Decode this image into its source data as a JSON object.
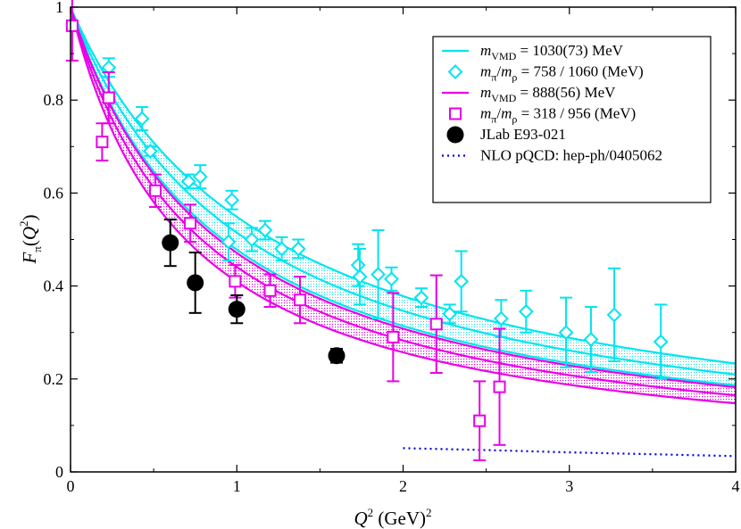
{
  "chart_data": {
    "type": "scatter",
    "title": "",
    "xlabel_parts": {
      "var": "Q",
      "sup": "2",
      "unit": "(GeV)",
      "unit_sup": "2"
    },
    "ylabel_parts": {
      "var": "F",
      "sub": "π",
      "arg_open": "(",
      "arg_var": "Q",
      "arg_sup": "2",
      "arg_close": ")"
    },
    "xlim": [
      0,
      4
    ],
    "ylim": [
      0,
      1
    ],
    "xticks": [
      "0",
      "1",
      "2",
      "3",
      "4"
    ],
    "yticks": [
      "0",
      "0.2",
      "0.4",
      "0.6",
      "0.8",
      "1"
    ],
    "legend_position": "top-right",
    "colors": {
      "cyan": "#00e5ee",
      "magenta": "#e800e8",
      "black": "#000000",
      "blue": "#0000dd"
    },
    "legend": [
      {
        "label_var": "m",
        "label_sub": "VMD",
        "label_rest": " = 1030(73) MeV",
        "kind": "line",
        "color": "#00e5ee"
      },
      {
        "label_var": "m",
        "label_sub": "π",
        "label_mid": "/",
        "label_var2": "m",
        "label_sub2": "ρ",
        "label_rest": " = 758 / 1060 (MeV)",
        "kind": "diamond",
        "color": "#00e5ee"
      },
      {
        "label_var": "m",
        "label_sub": "VMD",
        "label_rest": " = 888(56) MeV",
        "kind": "line",
        "color": "#e800e8"
      },
      {
        "label_var": "m",
        "label_sub": "π",
        "label_mid": "/",
        "label_var2": "m",
        "label_sub2": "ρ",
        "label_rest": " = 318 / 956 (MeV)",
        "kind": "square",
        "color": "#e800e8"
      },
      {
        "label_rest": "JLab E93-021",
        "kind": "circle",
        "color": "#000000"
      },
      {
        "label_rest": "NLO pQCD: hep-ph/0405062",
        "kind": "dotted",
        "color": "#0000dd"
      }
    ],
    "curves": [
      {
        "name": "VMD cyan central",
        "mass_GeV": 1.03,
        "color": "#00e5ee"
      },
      {
        "name": "VMD cyan upper",
        "mass_GeV": 1.103,
        "color": "#00e5ee"
      },
      {
        "name": "VMD cyan lower",
        "mass_GeV": 0.957,
        "color": "#00e5ee"
      },
      {
        "name": "VMD magenta central",
        "mass_GeV": 0.888,
        "color": "#e800e8"
      },
      {
        "name": "VMD magenta upper",
        "mass_GeV": 0.944,
        "color": "#e800e8"
      },
      {
        "name": "VMD magenta lower",
        "mass_GeV": 0.832,
        "color": "#e800e8"
      }
    ],
    "bands": [
      {
        "name": "cyan band",
        "lower_mass_GeV": 0.957,
        "upper_mass_GeV": 1.103,
        "color": "#00e5ee"
      },
      {
        "name": "magenta band",
        "lower_mass_GeV": 0.832,
        "upper_mass_GeV": 0.944,
        "color": "#e800e8"
      }
    ],
    "series": [
      {
        "name": "m_pi/m_rho = 758 / 1060 (MeV)",
        "marker": "diamond",
        "color": "#00e5ee",
        "points": [
          [
            0.23,
            0.87,
            0.02
          ],
          [
            0.43,
            0.76,
            0.025
          ],
          [
            0.48,
            0.69,
            0.01
          ],
          [
            0.71,
            0.625,
            0.015
          ],
          [
            0.78,
            0.635,
            0.025
          ],
          [
            0.97,
            0.585,
            0.02
          ],
          [
            0.95,
            0.495,
            0.04
          ],
          [
            1.09,
            0.5,
            0.025
          ],
          [
            1.17,
            0.52,
            0.02
          ],
          [
            1.27,
            0.48,
            0.025
          ],
          [
            1.37,
            0.48,
            0.02
          ],
          [
            1.73,
            0.445,
            0.045
          ],
          [
            1.74,
            0.42,
            0.06
          ],
          [
            1.85,
            0.425,
            0.095
          ],
          [
            1.93,
            0.415,
            0.025
          ],
          [
            2.11,
            0.375,
            0.02
          ],
          [
            2.28,
            0.34,
            0.02
          ],
          [
            2.35,
            0.41,
            0.065
          ],
          [
            2.59,
            0.33,
            0.04
          ],
          [
            2.74,
            0.345,
            0.045
          ],
          [
            2.98,
            0.3,
            0.075
          ],
          [
            3.13,
            0.285,
            0.07
          ],
          [
            3.27,
            0.338,
            0.1
          ],
          [
            3.55,
            0.28,
            0.08
          ]
        ]
      },
      {
        "name": "m_pi/m_rho = 318 / 956 (MeV)",
        "marker": "square",
        "color": "#e800e8",
        "points": [
          [
            0.01,
            0.96,
            0.075
          ],
          [
            0.19,
            0.71,
            0.04
          ],
          [
            0.23,
            0.805,
            0.055
          ],
          [
            0.51,
            0.605,
            0.035
          ],
          [
            0.72,
            0.535,
            0.04
          ],
          [
            0.99,
            0.41,
            0.035
          ],
          [
            1.2,
            0.39,
            0.035
          ],
          [
            1.38,
            0.37,
            0.05
          ],
          [
            1.94,
            0.29,
            0.095
          ],
          [
            2.2,
            0.318,
            0.105
          ],
          [
            2.46,
            0.11,
            0.085
          ],
          [
            2.58,
            0.183,
            0.125
          ]
        ]
      },
      {
        "name": "JLab E93-021",
        "marker": "circle",
        "color": "#000000",
        "points": [
          [
            0.6,
            0.493,
            0.05
          ],
          [
            0.75,
            0.407,
            0.065
          ],
          [
            1.0,
            0.35,
            0.03
          ],
          [
            1.6,
            0.25,
            0.015
          ]
        ]
      },
      {
        "name": "NLO pQCD: hep-ph/0405062",
        "marker": "dotted-line",
        "color": "#0000dd",
        "points": [
          [
            2.0,
            0.051,
            0
          ],
          [
            2.5,
            0.047,
            0
          ],
          [
            3.0,
            0.042,
            0
          ],
          [
            3.5,
            0.038,
            0
          ],
          [
            4.0,
            0.034,
            0
          ]
        ]
      }
    ]
  }
}
